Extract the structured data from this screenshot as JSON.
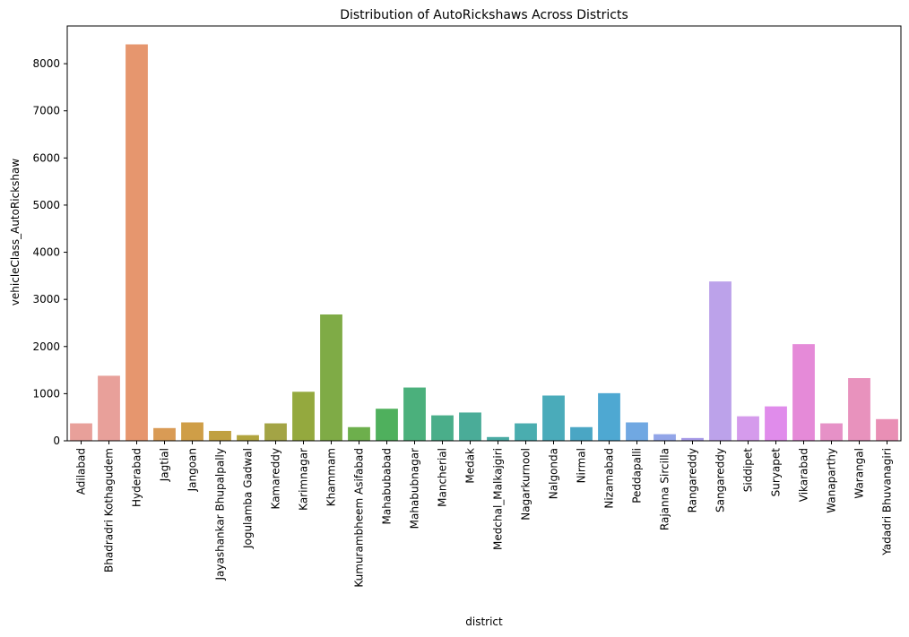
{
  "chart_data": {
    "type": "bar",
    "title": "Distribution of AutoRickshaws Across Districts",
    "xlabel": "district",
    "ylabel": "vehicleClass_AutoRickshaw",
    "ylim": [
      0,
      8800
    ],
    "yticks": [
      0,
      1000,
      2000,
      3000,
      4000,
      5000,
      6000,
      7000,
      8000
    ],
    "grid": false,
    "categories": [
      "Adilabad",
      "Bhadradri Kothagudem",
      "Hyderabad",
      "Jagtial",
      "Jangoan",
      "Jayashankar Bhupalpally",
      "Jogulamba Gadwal",
      "Kamareddy",
      "Karimnagar",
      "Khammam",
      "Kumurambheem Asifabad",
      "Mahabubabad",
      "Mahabubnagar",
      "Mancherial",
      "Medak",
      "Medchal_Malkajgiri",
      "Nagarkurnool",
      "Nalgonda",
      "Nirmal",
      "Nizamabad",
      "Peddapalli",
      "Rajanna Sircilla",
      "Rangareddy",
      "Sangareddy",
      "Siddipet",
      "Suryapet",
      "Vikarabad",
      "Wanaparthy",
      "Warangal",
      "Yadadri Bhuvanagiri"
    ],
    "values": [
      370,
      1380,
      8410,
      270,
      390,
      210,
      120,
      370,
      1040,
      2680,
      290,
      680,
      1130,
      540,
      600,
      80,
      370,
      960,
      290,
      1010,
      390,
      140,
      60,
      3380,
      520,
      730,
      2050,
      370,
      1330,
      460
    ],
    "colors": [
      "#e8a09a",
      "#e8a09a",
      "#e6966e",
      "#d99b55",
      "#cf9e47",
      "#c0a040",
      "#b1a43e",
      "#a3a445",
      "#94a93e",
      "#7fab46",
      "#6daf4c",
      "#4fb05d",
      "#4bb07c",
      "#4aae8a",
      "#4aac98",
      "#49aaa3",
      "#4aadaf",
      "#4aabba",
      "#4aa6c4",
      "#4ea8d2",
      "#70a8e2",
      "#92a5e8",
      "#a89be8",
      "#bca2ea",
      "#d59bec",
      "#e08ceb",
      "#e58ad8",
      "#e691c7",
      "#e892bd",
      "#e98fb5"
    ]
  }
}
